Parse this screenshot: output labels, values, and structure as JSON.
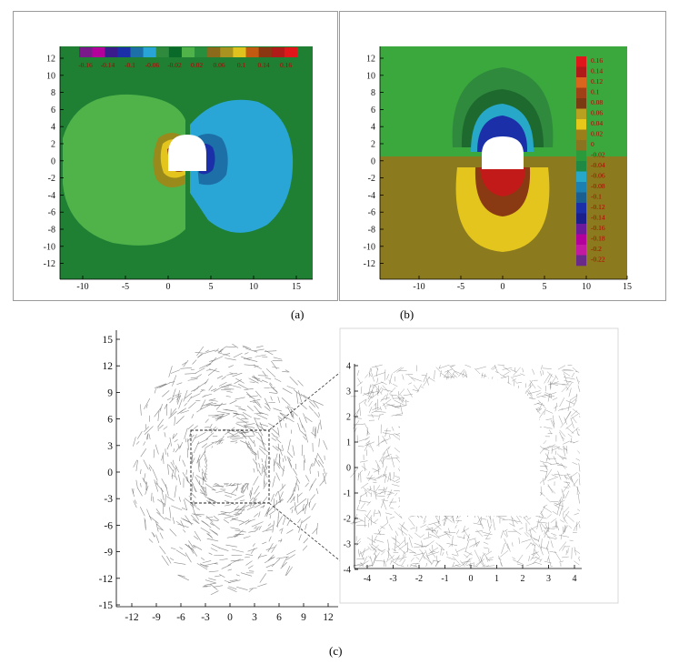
{
  "figure": {
    "panels": [
      {
        "id": "a",
        "caption": "(a)",
        "x_ticks": [
          "-10",
          "-5",
          "0",
          "5",
          "10",
          "15"
        ],
        "y_ticks": [
          "12",
          "10",
          "8",
          "6",
          "4",
          "2",
          "0",
          "-2",
          "-4",
          "-6",
          "-8",
          "-10",
          "-12"
        ],
        "colorbar_labels": [
          "-0.16",
          "-0.14",
          "-0.1",
          "-0.06",
          "-0.02",
          "0.02",
          "0.06",
          "0.1",
          "0.14",
          "0.16"
        ],
        "colorbar_colors": [
          "#7a1a8a",
          "#b3009c",
          "#3b1c8c",
          "#1a2fa8",
          "#1d6fa7",
          "#28a4d6",
          "#2f8a3e",
          "#0a6a2a",
          "#4fb34a",
          "#2a8f3c",
          "#8c6a1c",
          "#a89320",
          "#e0c21e",
          "#c25a12",
          "#8a3712",
          "#b01a18",
          "#e0161a"
        ]
      },
      {
        "id": "b",
        "caption": "(b)",
        "x_ticks": [
          "-10",
          "-5",
          "0",
          "5",
          "10",
          "15"
        ],
        "y_ticks": [
          "12",
          "10",
          "8",
          "6",
          "4",
          "2",
          "0",
          "-2",
          "-4",
          "-6",
          "-8",
          "-10",
          "-12"
        ],
        "colorbar_labels": [
          "0.16",
          "0.14",
          "0.12",
          "0.1",
          "0.08",
          "0.06",
          "0.04",
          "0.02",
          "0",
          "-0.02",
          "-0.04",
          "-0.06",
          "-0.08",
          "-0.1",
          "-0.12",
          "-0.14",
          "-0.16",
          "-0.18",
          "-0.2",
          "-0.22"
        ],
        "colorbar_colors": [
          "#e0161a",
          "#b01a18",
          "#d9661c",
          "#a04016",
          "#7a3a12",
          "#b8a020",
          "#e6c81a",
          "#9a7e1a",
          "#8a7420",
          "#2a9a3a",
          "#1e8a44",
          "#27a8c8",
          "#1c80b0",
          "#1a5f8f",
          "#1a2fa8",
          "#1b1f8c",
          "#6a1a9a",
          "#b3009c",
          "#c21aa0",
          "#6a2a8a"
        ]
      },
      {
        "id": "c",
        "caption": "(c)",
        "main_x_ticks": [
          "-12",
          "-9",
          "-6",
          "-3",
          "0",
          "3",
          "6",
          "9",
          "12"
        ],
        "main_y_ticks": [
          "15",
          "12",
          "9",
          "6",
          "3",
          "0",
          "-3",
          "-6",
          "-9",
          "-12",
          "-15"
        ],
        "inset_x_ticks": [
          "-4",
          "-3",
          "-2",
          "-1",
          "0",
          "1",
          "2",
          "3",
          "4"
        ],
        "inset_y_ticks": [
          "4",
          "3",
          "2",
          "1",
          "0",
          "-1",
          "-2",
          "-3",
          "-4"
        ]
      }
    ],
    "colors": {
      "green_field": "#1f7f33",
      "light_green": "#3aa83c",
      "olive": "#8c7a1e",
      "cyan": "#2aa6d6",
      "yellow": "#e3c51e",
      "blue": "#1a2fa8",
      "crack_gray": "#6f6f6f"
    }
  }
}
